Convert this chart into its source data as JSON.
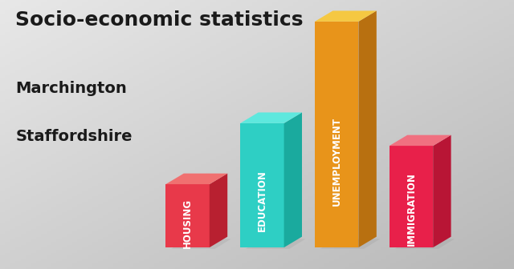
{
  "title": "Socio-economic statistics",
  "subtitle1": "Marchington",
  "subtitle2": "Staffordshire",
  "categories": [
    "HOUSING",
    "EDUCATION",
    "UNEMPLOYMENT",
    "IMMIGRATION"
  ],
  "values": [
    0.28,
    0.55,
    1.0,
    0.45
  ],
  "bar_colors_front": [
    "#e8394a",
    "#2ecfc4",
    "#e8941a",
    "#e8204a"
  ],
  "bar_colors_top": [
    "#f07070",
    "#5ee8de",
    "#f5c842",
    "#f07080"
  ],
  "bar_colors_side": [
    "#b82030",
    "#1aaa9e",
    "#b87010",
    "#b81535"
  ],
  "bg_color_topleft": "#e8e8e8",
  "bg_color_bottomright": "#b8b8b8",
  "shadow_color": "#c0c0c0",
  "text_color": "#ffffff",
  "title_color": "#1a1a1a",
  "title_fontsize": 18,
  "subtitle_fontsize": 14,
  "label_fontsize": 8.5
}
